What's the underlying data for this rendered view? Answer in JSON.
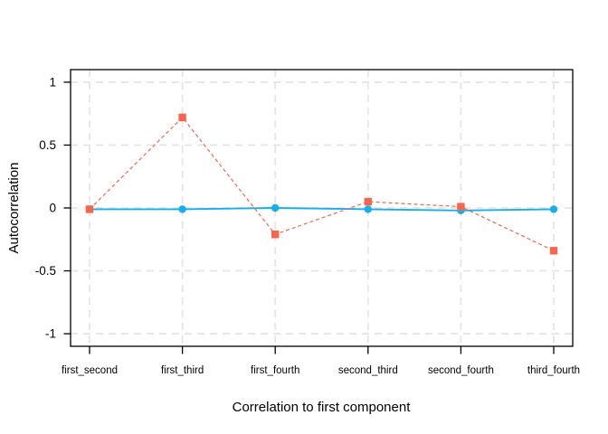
{
  "figure": {
    "background": "#ffffff"
  },
  "chart_data": {
    "type": "line",
    "title": "",
    "xlabel": "Correlation to first component",
    "ylabel": "Autocorrelation",
    "categories": [
      "first_second",
      "first_third",
      "first_fourth",
      "second_third",
      "second_fourth",
      "third_fourth"
    ],
    "series": [
      {
        "name": "blue-solid-circles",
        "marker": "circle",
        "line_style": "solid",
        "color": "#16AEEC",
        "values": [
          -0.01,
          -0.01,
          0.0,
          -0.01,
          -0.02,
          -0.01
        ]
      },
      {
        "name": "red-dashed-squares",
        "marker": "square",
        "line_style": "dashed",
        "color": "#F9644D",
        "values": [
          -0.01,
          0.72,
          -0.21,
          0.05,
          0.01,
          -0.34
        ]
      }
    ],
    "yticks": [
      1,
      0.5,
      0,
      -0.5,
      -1
    ],
    "ytick_labels": [
      "1",
      "0.5",
      "0",
      "-0.5",
      "-1"
    ],
    "ylim": [
      -1.1,
      1.1
    ],
    "grid": true,
    "grid_color": "#E4E4E4",
    "axis_color": "#000000",
    "legend": "none"
  }
}
